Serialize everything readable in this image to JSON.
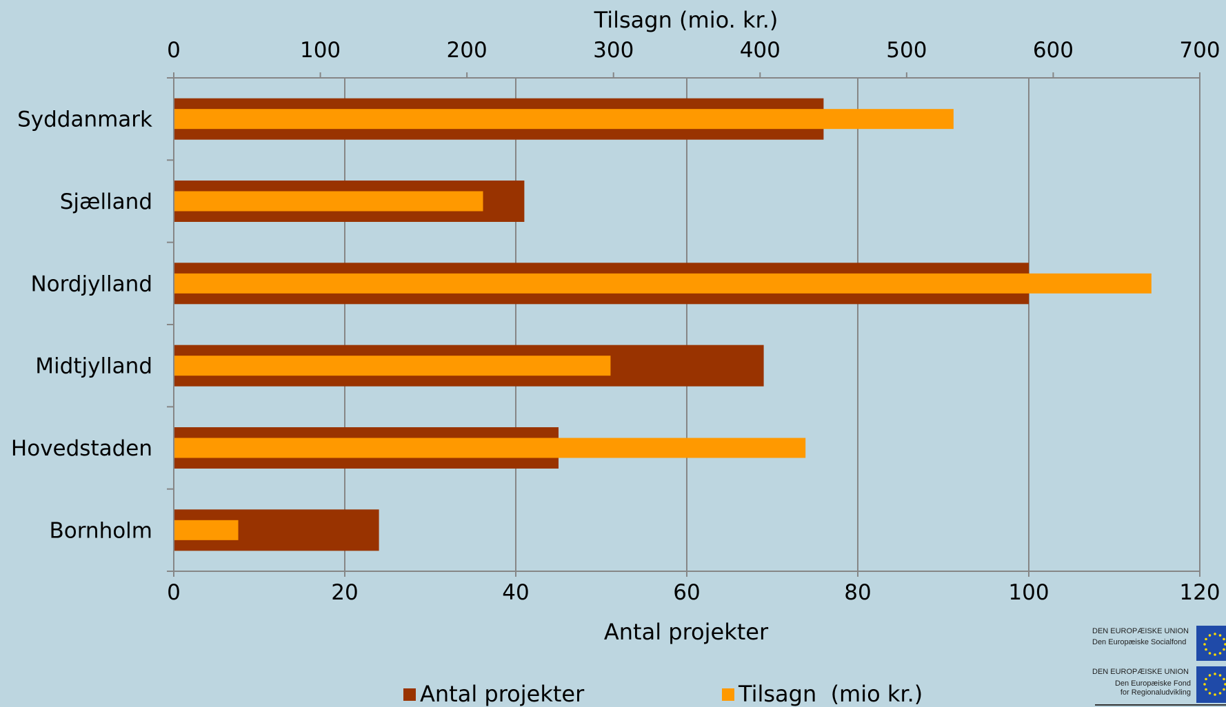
{
  "chart_data": {
    "type": "bar",
    "orientation": "horizontal",
    "categories": [
      "Syddanmark",
      "Sjælland",
      "Nordjylland",
      "Midtjylland",
      "Hovedstaden",
      "Bornholm"
    ],
    "series": [
      {
        "name": "Antal projekter",
        "axis": "bottom",
        "color": "#993300",
        "values": [
          76,
          41,
          100,
          69,
          45,
          24
        ]
      },
      {
        "name": "Tilsagn  (mio kr.)",
        "axis": "top",
        "color": "#ff9900",
        "values": [
          532,
          211,
          667,
          298,
          431,
          44
        ]
      }
    ],
    "x_bottom": {
      "label": "Antal projekter",
      "ticks": [
        "0",
        "20",
        "40",
        "60",
        "80",
        "100",
        "120"
      ],
      "range": [
        0,
        120
      ]
    },
    "x_top": {
      "label": "Tilsagn (mio. kr.)",
      "ticks": [
        "0",
        "100",
        "200",
        "300",
        "400",
        "500",
        "600",
        "700"
      ],
      "range": [
        0,
        700
      ]
    },
    "grid": "vertical",
    "legend": "bottom"
  },
  "logos": {
    "socialfond_line1": "DEN EUROPÆISKE UNION",
    "socialfond_line2": "Den Europæiske Socialfond",
    "regional_line1": "DEN EUROPÆISKE UNION",
    "regional_line2": "Den Europæiske Fond",
    "regional_line3": "for Regionaludvikling"
  },
  "background_color": "#bdd6e0"
}
